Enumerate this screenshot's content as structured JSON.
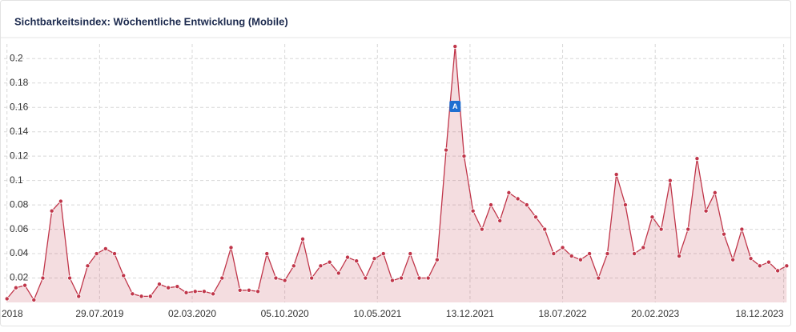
{
  "chart_data": {
    "type": "area",
    "title": "Sichtbarkeitsindex: Wöchentliche Entwicklung (Mobile)",
    "x": [
      "24.12.2018",
      "14.01.2019",
      "04.02.2019",
      "25.02.2019",
      "18.03.2019",
      "08.04.2019",
      "29.04.2019",
      "20.05.2019",
      "10.06.2019",
      "01.07.2019",
      "22.07.2019",
      "12.08.2019",
      "02.09.2019",
      "23.09.2019",
      "14.10.2019",
      "04.11.2019",
      "25.11.2019",
      "16.12.2019",
      "06.01.2020",
      "27.01.2020",
      "17.02.2020",
      "09.03.2020",
      "30.03.2020",
      "20.04.2020",
      "11.05.2020",
      "01.06.2020",
      "22.06.2020",
      "13.07.2020",
      "03.08.2020",
      "24.08.2020",
      "14.09.2020",
      "05.10.2020",
      "26.10.2020",
      "16.11.2020",
      "07.12.2020",
      "28.12.2020",
      "18.01.2021",
      "08.02.2021",
      "01.03.2021",
      "22.03.2021",
      "12.04.2021",
      "03.05.2021",
      "24.05.2021",
      "14.06.2021",
      "05.07.2021",
      "26.07.2021",
      "16.08.2021",
      "06.09.2021",
      "27.09.2021",
      "18.10.2021",
      "08.11.2021",
      "29.11.2021",
      "20.12.2021",
      "10.01.2022",
      "31.01.2022",
      "21.02.2022",
      "14.03.2022",
      "04.04.2022",
      "25.04.2022",
      "16.05.2022",
      "06.06.2022",
      "27.06.2022",
      "18.07.2022",
      "08.08.2022",
      "29.08.2022",
      "19.09.2022",
      "10.10.2022",
      "31.10.2022",
      "21.11.2022",
      "12.12.2022",
      "02.01.2023",
      "23.01.2023",
      "13.02.2023",
      "06.03.2023",
      "27.03.2023",
      "17.04.2023",
      "08.05.2023",
      "29.05.2023",
      "19.06.2023",
      "10.07.2023",
      "31.07.2023",
      "21.08.2023",
      "11.09.2023",
      "02.10.2023",
      "23.10.2023",
      "13.11.2023",
      "04.12.2023",
      "25.12.2023"
    ],
    "series": [
      {
        "name": "Mobile",
        "color": "#c0364a",
        "values": [
          0.003,
          0.012,
          0.014,
          0.002,
          0.02,
          0.075,
          0.083,
          0.02,
          0.005,
          0.03,
          0.04,
          0.044,
          0.04,
          0.022,
          0.007,
          0.005,
          0.005,
          0.015,
          0.012,
          0.013,
          0.008,
          0.009,
          0.009,
          0.007,
          0.02,
          0.045,
          0.01,
          0.01,
          0.009,
          0.04,
          0.02,
          0.018,
          0.03,
          0.052,
          0.02,
          0.03,
          0.033,
          0.024,
          0.037,
          0.034,
          0.02,
          0.036,
          0.04,
          0.018,
          0.02,
          0.04,
          0.02,
          0.02,
          0.035,
          0.125,
          0.21,
          0.12,
          0.075,
          0.06,
          0.08,
          0.067,
          0.09,
          0.085,
          0.08,
          0.07,
          0.06,
          0.04,
          0.045,
          0.038,
          0.035,
          0.04,
          0.02,
          0.04,
          0.105,
          0.08,
          0.04,
          0.045,
          0.07,
          0.06,
          0.1,
          0.038,
          0.06,
          0.118,
          0.075,
          0.09,
          0.056,
          0.035,
          0.06,
          0.036,
          0.03,
          0.033,
          0.026,
          0.03
        ]
      }
    ],
    "xlim": [
      "17.12.2018",
      "30.12.2023"
    ],
    "xticks": [
      {
        "value": "24.12.2018",
        "label": "2018"
      },
      "29.07.2019",
      "02.03.2020",
      "05.10.2020",
      "10.05.2021",
      "13.12.2021",
      "18.07.2022",
      "20.02.2023",
      "18.12.2023"
    ],
    "ylim": [
      0,
      0.212
    ],
    "yticks": [
      0.02,
      0.04,
      0.06,
      0.08,
      0.1,
      0.12,
      0.14,
      0.16,
      0.18,
      0.2
    ],
    "grid": true,
    "annotations": [
      {
        "label": "A",
        "x": "08.11.2021"
      }
    ]
  }
}
